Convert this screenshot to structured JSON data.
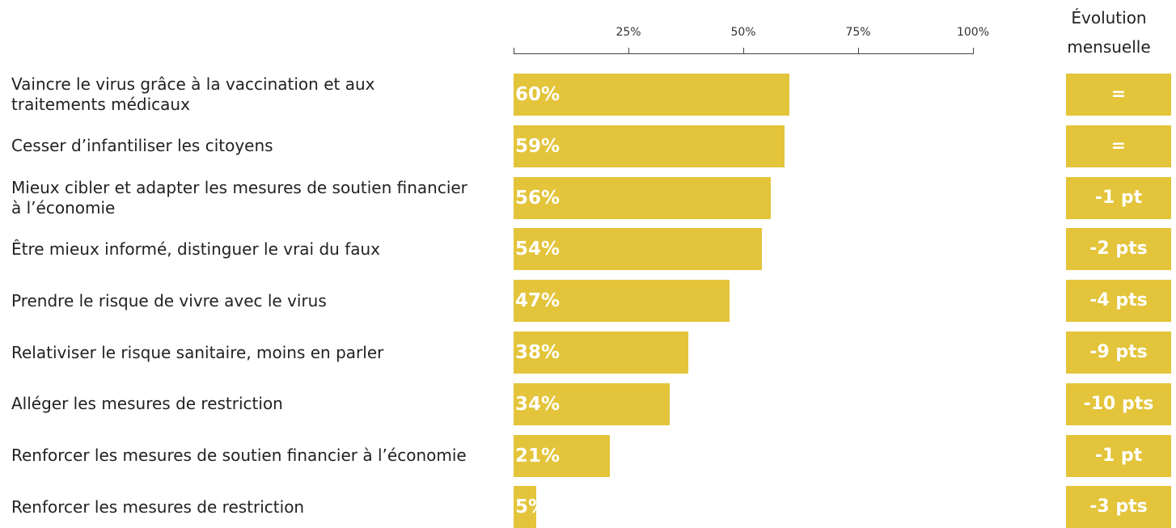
{
  "chart_data": {
    "type": "bar",
    "orientation": "horizontal",
    "categories": [
      "Vaincre le virus grâce à la vaccination et aux traitements médicaux",
      "Cesser d’infantiliser les citoyens",
      "Mieux cibler et adapter les mesures de soutien financier à l’économie",
      "Être mieux informé, distinguer le vrai du faux",
      "Prendre le risque de vivre avec le virus",
      "Relativiser le risque sanitaire, moins en parler",
      "Alléger les mesures de restriction",
      "Renforcer les mesures de soutien financier à l’économie",
      "Renforcer les mesures de restriction"
    ],
    "values": [
      60,
      59,
      56,
      54,
      47,
      38,
      34,
      21,
      5
    ],
    "value_labels": [
      "60%",
      "59%",
      "56%",
      "54%",
      "47%",
      "38%",
      "34%",
      "21%",
      "5%"
    ],
    "color": "#e3c43a",
    "xlim": [
      0,
      100
    ],
    "xticks": [
      {
        "value": 25,
        "label": "25%"
      },
      {
        "value": 50,
        "label": "50%"
      },
      {
        "value": 75,
        "label": "75%"
      },
      {
        "value": 100,
        "label": "100%"
      }
    ],
    "changes_title": "Évolution mensuelle",
    "changes": [
      "=",
      "=",
      "-1 pt",
      "-2 pts",
      "-4 pts",
      "-9 pts",
      "-10 pts",
      "-1 pt",
      "-3 pts"
    ]
  }
}
